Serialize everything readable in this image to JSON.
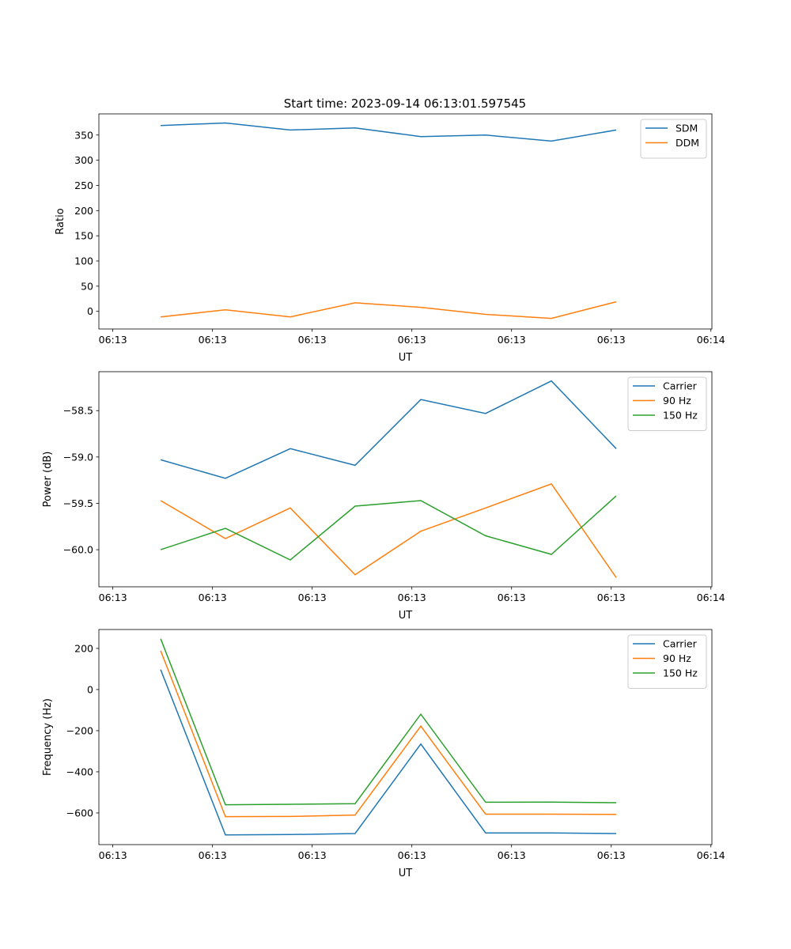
{
  "chart_data": {
    "title": "Start time: 2023-09-14 06:13:01.597545",
    "x": [
      4.8,
      11.3,
      17.8,
      24.3,
      30.9,
      37.4,
      44.0,
      50.5
    ],
    "x_unit": "seconds after 06:13:00",
    "xticks": [
      0,
      10,
      20,
      30,
      40,
      50,
      60
    ],
    "xtick_labels": [
      "06:13",
      "06:13",
      "06:13",
      "06:13",
      "06:13",
      "06:13",
      "06:14"
    ],
    "xlim": [
      -1.4,
      60.1
    ],
    "colors": {
      "c0": "#1f77b4",
      "c1": "#ff7f0e",
      "c2": "#2ca02c"
    },
    "subplots": [
      {
        "type": "line",
        "xlabel": "UT",
        "ylabel": "Ratio",
        "ylim": [
          -35,
          392
        ],
        "yticks": [
          0,
          50,
          100,
          150,
          200,
          250,
          300,
          350
        ],
        "ytick_labels": [
          "0",
          "50",
          "100",
          "150",
          "200",
          "250",
          "300",
          "350"
        ],
        "legend": "top-right",
        "series": [
          {
            "name": "SDM",
            "values": [
              369,
              374,
              360,
              364,
              347,
              350,
              338,
              360
            ]
          },
          {
            "name": "DDM",
            "values": [
              -11,
              3,
              -11,
              17,
              8,
              -6,
              -14,
              19
            ]
          }
        ]
      },
      {
        "type": "line",
        "xlabel": "UT",
        "ylabel": "Power (dB)",
        "ylim": [
          -60.4,
          -58.08
        ],
        "yticks": [
          -60.0,
          -59.5,
          -59.0,
          -58.5
        ],
        "ytick_labels": [
          "−60.0",
          "−59.5",
          "−59.0",
          "−58.5"
        ],
        "legend": "top-right",
        "series": [
          {
            "name": "Carrier",
            "values": [
              -59.03,
              -59.23,
              -58.91,
              -59.09,
              -58.38,
              -58.53,
              -58.18,
              -58.91
            ]
          },
          {
            "name": "90 Hz",
            "values": [
              -59.47,
              -59.88,
              -59.55,
              -60.27,
              -59.8,
              -59.55,
              -59.29,
              -60.3
            ]
          },
          {
            "name": "150 Hz",
            "values": [
              -60.0,
              -59.77,
              -60.11,
              -59.53,
              -59.47,
              -59.85,
              -60.05,
              -59.42
            ]
          }
        ]
      },
      {
        "type": "line",
        "xlabel": "UT",
        "ylabel": "Frequency (Hz)",
        "ylim": [
          -754,
          292
        ],
        "yticks": [
          -600,
          -400,
          -200,
          0,
          200
        ],
        "ytick_labels": [
          "−600",
          "−400",
          "−200",
          "0",
          "200"
        ],
        "legend": "top-right",
        "series": [
          {
            "name": "Carrier",
            "values": [
              97,
              -707,
              -705,
              -700,
              -265,
              -697,
              -697,
              -700
            ]
          },
          {
            "name": "90 Hz",
            "values": [
              189,
              -618,
              -617,
              -610,
              -178,
              -606,
              -606,
              -607
            ]
          },
          {
            "name": "150 Hz",
            "values": [
              247,
              -560,
              -558,
              -555,
              -120,
              -548,
              -547,
              -550
            ]
          }
        ]
      }
    ]
  }
}
